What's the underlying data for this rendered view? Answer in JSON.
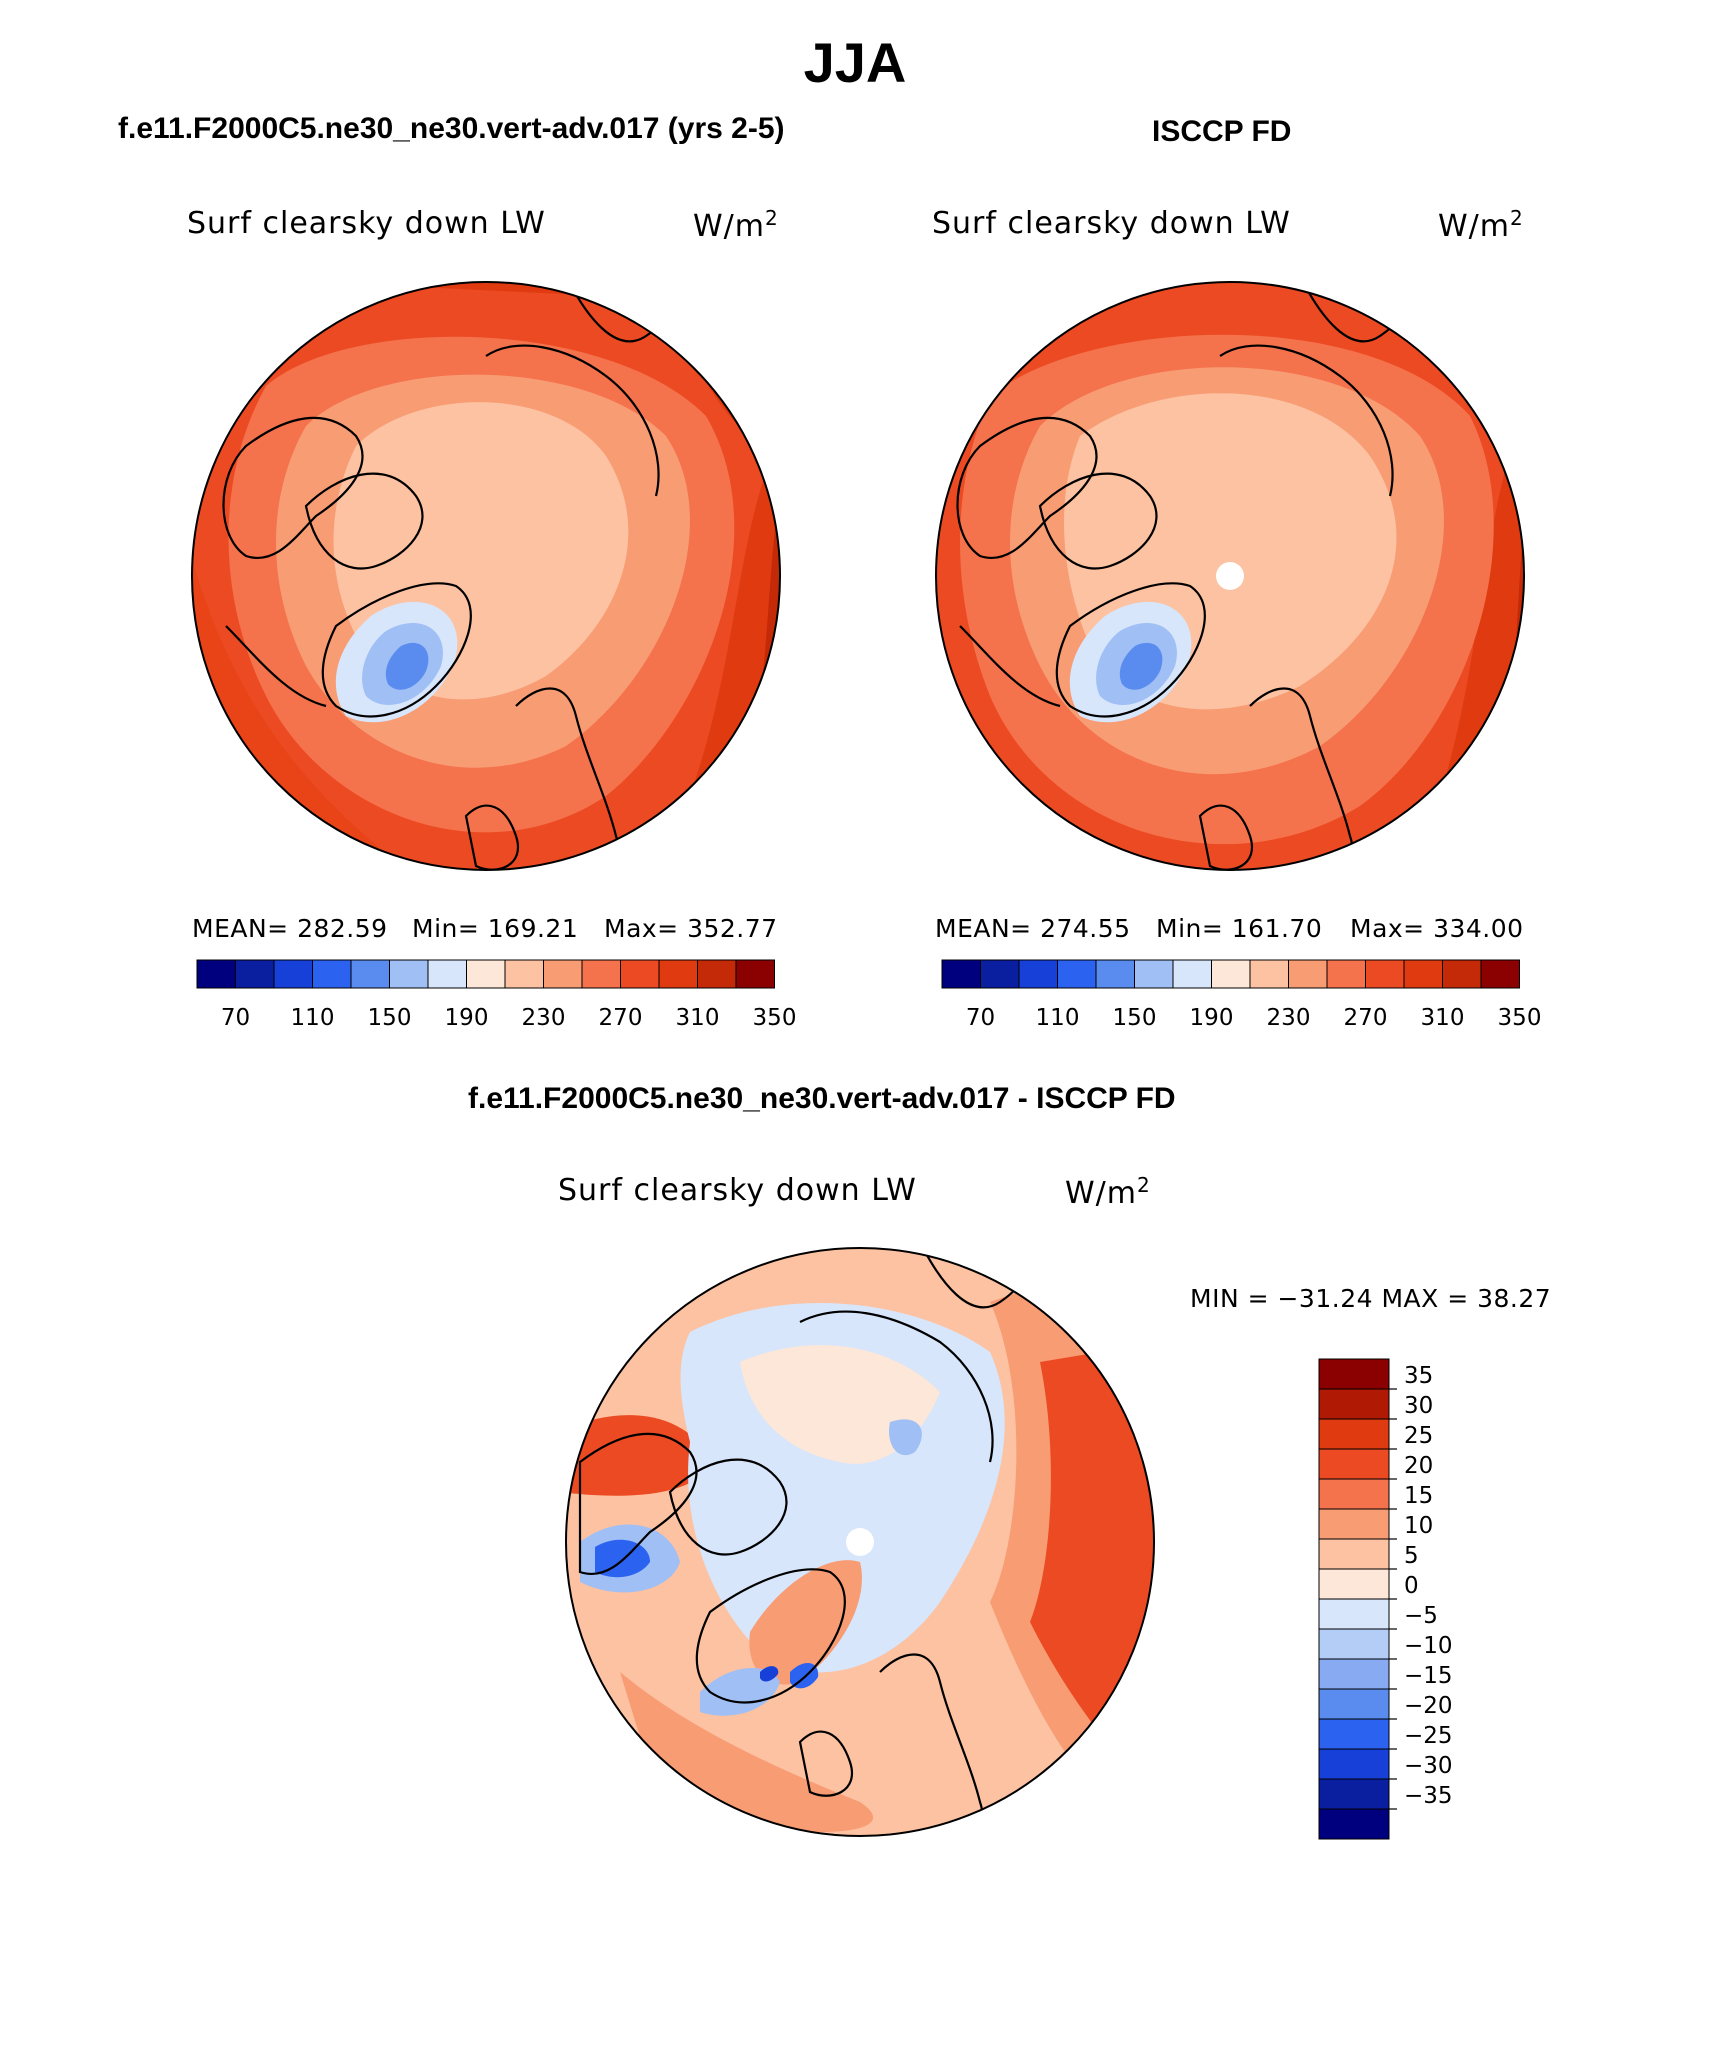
{
  "page": {
    "title": "JJA"
  },
  "panels": [
    {
      "title": "f.e11.F2000C5.ne30_ne30.vert-adv.017 (yrs 2-5)",
      "variable": "Surf clearsky down LW",
      "units_base": "W/m",
      "units_exp": "2",
      "stats": {
        "mean": "MEAN= 282.59",
        "min": "Min= 169.21",
        "max": "Max= 352.77"
      }
    },
    {
      "title": "ISCCP FD",
      "variable": "Surf clearsky down LW",
      "units_base": "W/m",
      "units_exp": "2",
      "stats": {
        "mean": "MEAN= 274.55",
        "min": "Min= 161.70",
        "max": "Max= 334.00"
      }
    },
    {
      "title": "f.e11.F2000C5.ne30_ne30.vert-adv.017 - ISCCP FD",
      "variable": "Surf clearsky down LW",
      "units_base": "W/m",
      "units_exp": "2",
      "stats": {
        "minmax": "MIN = −31.24 MAX =  38.27"
      }
    }
  ],
  "colorbar_abs": {
    "colors": [
      "#00007f",
      "#0a1ea0",
      "#1640d8",
      "#2c62f0",
      "#5a8cf0",
      "#9fbff5",
      "#d7e6fb",
      "#fde7d8",
      "#fcc2a2",
      "#f89c74",
      "#f4724c",
      "#ec4a23",
      "#e03a10",
      "#c42a08",
      "#8b0000"
    ],
    "tick_labels": [
      "70",
      "110",
      "150",
      "190",
      "230",
      "270",
      "310",
      "350"
    ]
  },
  "colorbar_diff": {
    "colors": [
      "#8b0000",
      "#b01a04",
      "#e03a10",
      "#ec4a23",
      "#f4724c",
      "#f89c74",
      "#fcc2a2",
      "#fde7d8",
      "#d7e6fb",
      "#b4cdf7",
      "#88aaf2",
      "#5a8cf0",
      "#2c62f0",
      "#1640d8",
      "#0a1ea0",
      "#00007f"
    ],
    "tick_labels": [
      "35",
      "30",
      "25",
      "20",
      "15",
      "10",
      "5",
      "0",
      "−5",
      "−10",
      "−15",
      "−20",
      "−25",
      "−30",
      "−35"
    ]
  }
}
